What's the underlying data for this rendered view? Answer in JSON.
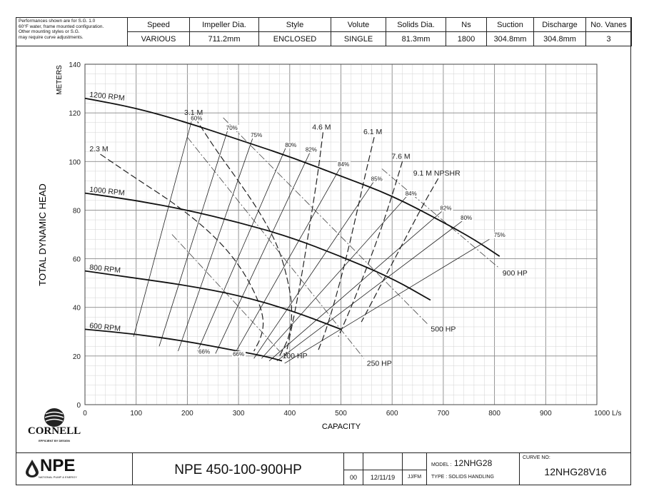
{
  "spec_table": {
    "note_lines": [
      "Performances shown are for S.G. 1.0",
      "60°F water, frame mounted configuration.",
      "Other mounting styles or S.G.",
      "may require curve adjustments."
    ],
    "headers": [
      "Speed",
      "Impeller Dia.",
      "Style",
      "Volute",
      "Solids Dia.",
      "Ns",
      "Suction",
      "Discharge",
      "No. Vanes"
    ],
    "values": [
      "VARIOUS",
      "711.2mm",
      "ENCLOSED",
      "SINGLE",
      "81.3mm",
      "1800",
      "304.8mm",
      "304.8mm",
      "3"
    ]
  },
  "logos": {
    "cornell": {
      "name": "CORNELL",
      "tagline": "EFFICIENT BY DESIGN"
    },
    "npe": {
      "name": "NPE",
      "tagline": "NATIONAL PUMP & ENERGY"
    }
  },
  "title_block": {
    "model_name": "NPE 450-100-900HP",
    "revision": "00",
    "date": "12/11/19",
    "initials": "JJ/FM",
    "model_label": "MODEL :",
    "model_value": "12NHG28",
    "type_label": "TYPE :",
    "type_value": "SOLIDS HANDLING",
    "curve_label": "CURVE NO:",
    "curve_value": "12NHG28V16"
  },
  "chart_data": {
    "type": "line",
    "title": "",
    "xlabel": "CAPACITY",
    "ylabel": "TOTAL DYNAMIC HEAD",
    "ylabel_units": "METERS",
    "x_unit": "L/s",
    "xlim": [
      0,
      1000
    ],
    "ylim": [
      0,
      140
    ],
    "x_ticks": [
      0,
      100,
      200,
      300,
      400,
      500,
      600,
      700,
      800,
      900,
      1000
    ],
    "x_tick_labels": [
      "0",
      "100",
      "200",
      "300",
      "400",
      "500",
      "600",
      "700",
      "800",
      "900",
      "1000 L/s"
    ],
    "y_ticks": [
      0,
      20,
      40,
      60,
      80,
      100,
      120,
      140
    ],
    "grid": true,
    "speed_curves": [
      {
        "name": "1200 RPM",
        "x": [
          0,
          100,
          200,
          300,
          400,
          500,
          600,
          700,
          760,
          810
        ],
        "y": [
          126,
          122,
          116,
          109,
          102,
          94,
          86,
          75,
          68,
          61
        ]
      },
      {
        "name": "1000 RPM",
        "x": [
          0,
          100,
          200,
          300,
          400,
          500,
          600,
          675
        ],
        "y": [
          87,
          84,
          80,
          75,
          69,
          61,
          52,
          43
        ]
      },
      {
        "name": "800 RPM",
        "x": [
          0,
          100,
          200,
          300,
          400,
          500
        ],
        "y": [
          55,
          52,
          49,
          45,
          39,
          31
        ]
      },
      {
        "name": "600 RPM",
        "x": [
          0,
          100,
          200,
          300,
          350,
          385
        ],
        "y": [
          31,
          29,
          26,
          22,
          20,
          18
        ]
      }
    ],
    "efficiency_labels": [
      {
        "label": "60%",
        "x": 218,
        "y": 117
      },
      {
        "label": "70%",
        "x": 287,
        "y": 113
      },
      {
        "label": "75%",
        "x": 335,
        "y": 110
      },
      {
        "label": "80%",
        "x": 402,
        "y": 106
      },
      {
        "label": "82%",
        "x": 442,
        "y": 104
      },
      {
        "label": "84%",
        "x": 505,
        "y": 98
      },
      {
        "label": "85%",
        "x": 570,
        "y": 92
      },
      {
        "label": "84%",
        "x": 637,
        "y": 86
      },
      {
        "label": "82%",
        "x": 705,
        "y": 80
      },
      {
        "label": "80%",
        "x": 745,
        "y": 76
      },
      {
        "label": "75%",
        "x": 810,
        "y": 69
      },
      {
        "label": "66%",
        "x": 233,
        "y": 21
      },
      {
        "label": "66%",
        "x": 300,
        "y": 20
      }
    ],
    "efficiency_lines": [
      {
        "label": "60%",
        "x": [
          95,
          210
        ],
        "y": [
          28,
          118
        ]
      },
      {
        "label": "70%",
        "x": [
          145,
          282
        ],
        "y": [
          24,
          115
        ]
      },
      {
        "label": "75%",
        "x": [
          182,
          330
        ],
        "y": [
          22,
          111
        ]
      },
      {
        "label": "80%",
        "x": [
          220,
          395
        ],
        "y": [
          22,
          107
        ]
      },
      {
        "label": "82%",
        "x": [
          255,
          440
        ],
        "y": [
          21,
          104
        ]
      },
      {
        "label": "84%",
        "x": [
          290,
          500
        ],
        "y": [
          20,
          98
        ]
      },
      {
        "label": "85%",
        "x": [
          330,
          565
        ],
        "y": [
          19,
          92
        ]
      },
      {
        "label": "84%",
        "x": [
          345,
          630
        ],
        "y": [
          19,
          86
        ]
      },
      {
        "label": "82%",
        "x": [
          360,
          700
        ],
        "y": [
          18,
          80
        ]
      },
      {
        "label": "80%",
        "x": [
          375,
          740
        ],
        "y": [
          18,
          76
        ]
      },
      {
        "label": "75%",
        "x": [
          390,
          790
        ],
        "y": [
          17,
          68
        ]
      }
    ],
    "npshr_curves": [
      {
        "label": "3.1 M",
        "x": [
          215,
          255,
          300,
          345,
          380,
          400,
          405,
          400,
          380
        ],
        "y": [
          118,
          105,
          92,
          78,
          64,
          48,
          38,
          28,
          20
        ]
      },
      {
        "label": "2.3 M",
        "x": [
          30,
          100,
          180,
          250,
          300,
          335,
          350,
          345,
          330
        ],
        "y": [
          103,
          93,
          82,
          70,
          58,
          45,
          35,
          28,
          22
        ]
      },
      {
        "label": "4.6 M",
        "x": [
          465,
          455,
          440,
          425,
          410,
          398,
          392
        ],
        "y": [
          112,
          95,
          75,
          55,
          38,
          26,
          20
        ]
      },
      {
        "label": "6.1 M",
        "x": [
          565,
          548,
          530,
          510,
          490,
          470,
          455
        ],
        "y": [
          110,
          95,
          78,
          60,
          44,
          30,
          22
        ]
      },
      {
        "label": "7.6 M",
        "x": [
          620,
          600,
          575,
          548,
          520,
          495
        ],
        "y": [
          100,
          86,
          70,
          55,
          40,
          28
        ]
      },
      {
        "label": "9.1 M NPSHR",
        "x": [
          690,
          660,
          630,
          600,
          570,
          540
        ],
        "y": [
          93,
          82,
          70,
          58,
          46,
          34
        ]
      }
    ],
    "power_lines": [
      {
        "label": "100 HP",
        "x": [
          170,
          380
        ],
        "y": [
          70,
          22
        ]
      },
      {
        "label": "250 HP",
        "x": [
          200,
          545
        ],
        "y": [
          110,
          19
        ]
      },
      {
        "label": "500 HP",
        "x": [
          270,
          670
        ],
        "y": [
          118,
          33
        ]
      },
      {
        "label": "900 HP",
        "x": [
          580,
          810
        ],
        "y": [
          97,
          56
        ]
      }
    ]
  }
}
